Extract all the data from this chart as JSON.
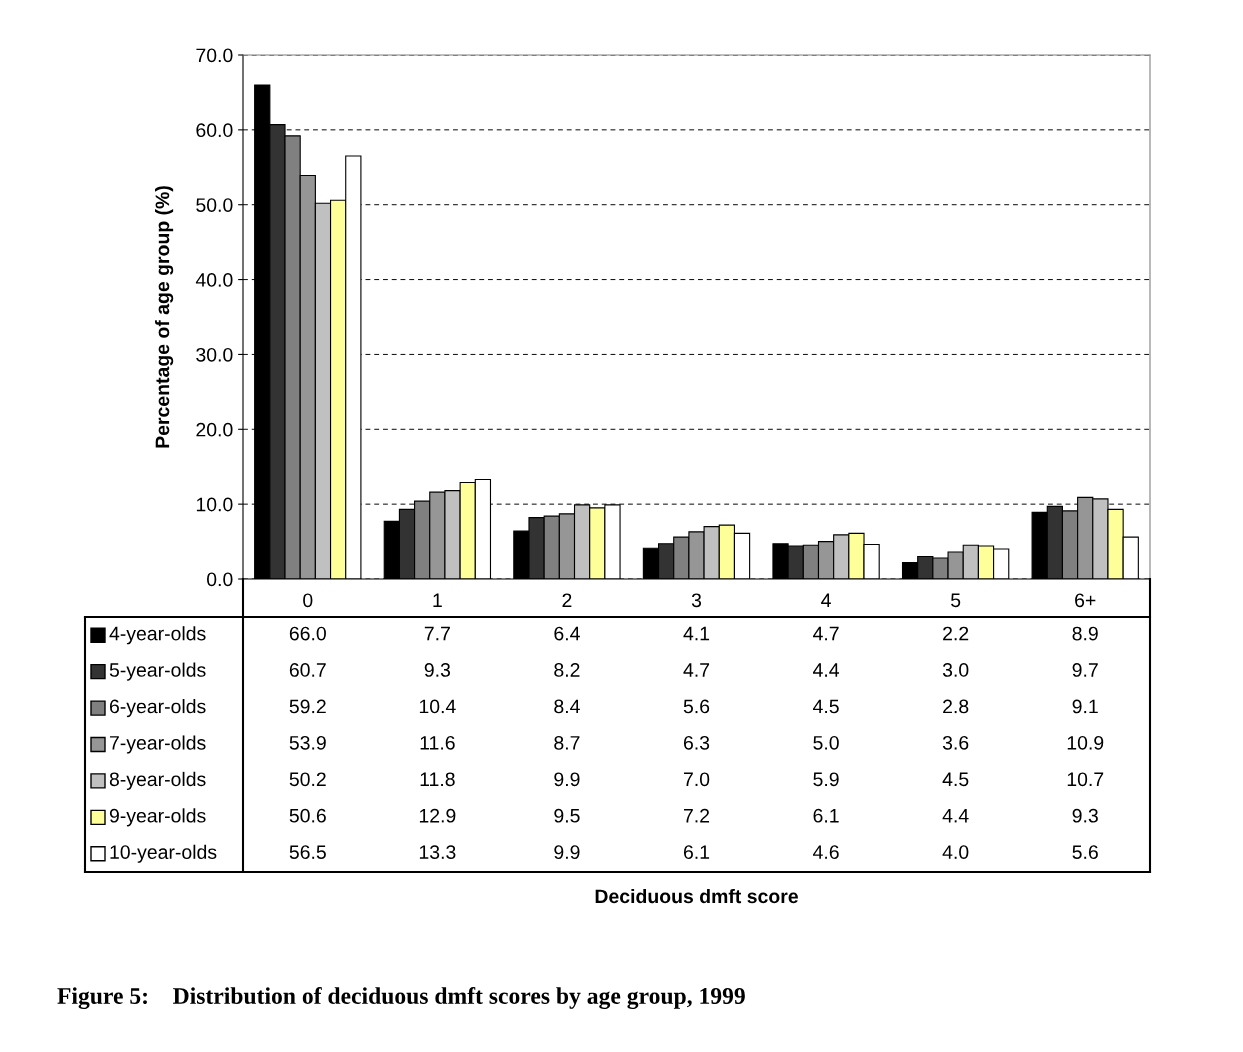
{
  "chart_data": {
    "type": "bar",
    "title": "Figure 5:    Distribution of deciduous dmft scores by age group, 1999",
    "annotations": [
      "Deciduous dmft score"
    ],
    "ylabel": "Percentage of age group (%)",
    "categories": [
      "0",
      "1",
      "2",
      "3",
      "4",
      "5",
      "6+"
    ],
    "series": [
      {
        "name": "4-year-olds",
        "color": "#000000",
        "values": [
          66.0,
          7.7,
          6.4,
          4.1,
          4.7,
          2.2,
          8.9
        ],
        "value_labels": [
          "66.0",
          "7.7",
          "6.4",
          "4.1",
          "4.7",
          "2.2",
          "8.9"
        ]
      },
      {
        "name": "5-year-olds",
        "color": "#333333",
        "values": [
          60.7,
          9.3,
          8.2,
          4.7,
          4.4,
          3.0,
          9.7
        ],
        "value_labels": [
          "60.7",
          "9.3",
          "8.2",
          "4.7",
          "4.4",
          "3.0",
          "9.7"
        ]
      },
      {
        "name": "6-year-olds",
        "color": "#808080",
        "values": [
          59.2,
          10.4,
          8.4,
          5.6,
          4.5,
          2.8,
          9.1
        ],
        "value_labels": [
          "59.2",
          "10.4",
          "8.4",
          "5.6",
          "4.5",
          "2.8",
          "9.1"
        ]
      },
      {
        "name": "7-year-olds",
        "color": "#969696",
        "values": [
          53.9,
          11.6,
          8.7,
          6.3,
          5.0,
          3.6,
          10.9
        ],
        "value_labels": [
          "53.9",
          "11.6",
          "8.7",
          "6.3",
          "5.0",
          "3.6",
          "10.9"
        ]
      },
      {
        "name": "8-year-olds",
        "color": "#c0c0c0",
        "values": [
          50.2,
          11.8,
          9.9,
          7.0,
          5.9,
          4.5,
          10.7
        ],
        "value_labels": [
          "50.2",
          "11.8",
          "9.9",
          "7.0",
          "5.9",
          "4.5",
          "10.7"
        ]
      },
      {
        "name": "9-year-olds",
        "color": "#ffff99",
        "values": [
          50.6,
          12.9,
          9.5,
          7.2,
          6.1,
          4.4,
          9.3
        ],
        "value_labels": [
          "50.6",
          "12.9",
          "9.5",
          "7.2",
          "6.1",
          "4.4",
          "9.3"
        ]
      },
      {
        "name": "10-year-olds",
        "color": "#ffffff",
        "values": [
          56.5,
          13.3,
          9.9,
          6.1,
          4.6,
          4.0,
          5.6
        ],
        "value_labels": [
          "56.5",
          "13.3",
          "9.9",
          "6.1",
          "4.6",
          "4.0",
          "5.6"
        ]
      }
    ],
    "ylim": [
      0,
      70
    ],
    "yticks": [
      {
        "value": 0,
        "label": "0.0"
      },
      {
        "value": 10,
        "label": "10.0"
      },
      {
        "value": 20,
        "label": "20.0"
      },
      {
        "value": 30,
        "label": "30.0"
      },
      {
        "value": 40,
        "label": "40.0"
      },
      {
        "value": 50,
        "label": "50.0"
      },
      {
        "value": 60,
        "label": "60.0"
      },
      {
        "value": 70,
        "label": "70.0"
      }
    ],
    "grid": "y",
    "legend": "bottom"
  }
}
